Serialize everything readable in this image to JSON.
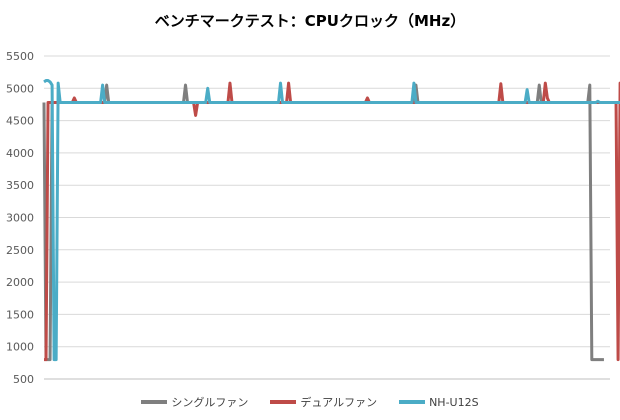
{
  "chart_data": {
    "type": "line",
    "title": "ベンチマークテスト：CPUクロック（MHz）",
    "xlabel": "",
    "ylabel": "",
    "ylim": [
      500,
      5500
    ],
    "yticks": [
      "500",
      "1000",
      "1500",
      "2000",
      "2500",
      "3000",
      "3500",
      "4000",
      "4500",
      "5000",
      "5500"
    ],
    "grid": true,
    "legend_position": "bottom",
    "n_points": 281,
    "series": [
      {
        "name": "シングルファン",
        "color": "#7f7f7f",
        "values": [
          4780,
          800,
          800,
          800,
          4780,
          4780,
          4780,
          4780,
          4780,
          4780,
          4780,
          4780,
          4780,
          4780,
          4780,
          4780,
          4780,
          4780,
          4780,
          4780,
          4780,
          4780,
          4780,
          4780,
          4780,
          4780,
          4780,
          4780,
          4780,
          4780,
          4780,
          5050,
          4780,
          4780,
          4780,
          4780,
          4780,
          4780,
          4780,
          4780,
          4780,
          4780,
          4780,
          4780,
          4780,
          4780,
          4780,
          4780,
          4780,
          4780,
          4780,
          4780,
          4780,
          4780,
          4780,
          4780,
          4780,
          4780,
          4780,
          4780,
          4780,
          4780,
          4780,
          4780,
          4780,
          4780,
          4780,
          4780,
          4780,
          4780,
          5050,
          4780,
          4780,
          4780,
          4780,
          4780,
          4780,
          4780,
          4780,
          4780,
          4780,
          4780,
          4780,
          4780,
          4780,
          4780,
          4780,
          4780,
          4780,
          4780,
          4780,
          4780,
          4780,
          4780,
          4780,
          4780,
          4780,
          4780,
          4780,
          4780,
          4780,
          4780,
          4780,
          4780,
          4780,
          4780,
          4780,
          4780,
          4780,
          4780,
          4780,
          4780,
          4780,
          4780,
          4780,
          4780,
          4780,
          4780,
          4780,
          4780,
          4780,
          4780,
          4780,
          4780,
          4780,
          4780,
          4780,
          4780,
          4780,
          4780,
          4780,
          4780,
          4780,
          4780,
          4780,
          4780,
          4780,
          4780,
          4780,
          4780,
          4780,
          4780,
          4780,
          4780,
          4780,
          4780,
          4780,
          4780,
          4780,
          4780,
          4780,
          4780,
          4780,
          4780,
          4780,
          4780,
          4780,
          4780,
          4780,
          4780,
          4780,
          4780,
          4780,
          4780,
          4780,
          4780,
          4780,
          4780,
          4780,
          4780,
          4780,
          4780,
          4780,
          4780,
          4780,
          4780,
          4780,
          4780,
          4780,
          4780,
          4780,
          4780,
          4780,
          4780,
          5050,
          4780,
          4780,
          4780,
          4780,
          4780,
          4780,
          4780,
          4780,
          4780,
          4780,
          4780,
          4780,
          4780,
          4780,
          4780,
          4780,
          4780,
          4780,
          4780,
          4780,
          4780,
          4780,
          4780,
          4780,
          4780,
          4780,
          4780,
          4780,
          4780,
          4780,
          4780,
          4780,
          4780,
          4780,
          4780,
          4780,
          4780,
          4780,
          4780,
          4780,
          4780,
          4780,
          4780,
          4780,
          4780,
          4780,
          4780,
          4780,
          4780,
          4780,
          4780,
          4780,
          4780,
          4780,
          4780,
          4780,
          4780,
          4780,
          4780,
          4780,
          5050,
          4780,
          4780,
          4780,
          4780,
          4780,
          4780,
          4780,
          4780,
          4780,
          4780,
          4780,
          4780,
          4780,
          4780,
          4780,
          4780,
          4780,
          4780,
          4780,
          4780,
          4780,
          4780,
          4780,
          4780,
          5050,
          800,
          800,
          800,
          800,
          800,
          800,
          800
        ]
      },
      {
        "name": "デュアルファン",
        "color": "#be4b48",
        "values": [
          800,
          800,
          4780,
          4780,
          4780,
          4780,
          4780,
          4780,
          4780,
          4780,
          4780,
          4780,
          4780,
          4780,
          4780,
          4850,
          4780,
          4780,
          4780,
          4780,
          4780,
          4780,
          4780,
          4780,
          4780,
          4780,
          4780,
          4780,
          4780,
          4780,
          4780,
          4780,
          4780,
          4780,
          4780,
          4780,
          4780,
          4780,
          4780,
          4780,
          4780,
          4780,
          4780,
          4780,
          4780,
          4780,
          4780,
          4780,
          4780,
          4780,
          4780,
          4780,
          4780,
          4780,
          4780,
          4780,
          4780,
          4780,
          4780,
          4780,
          4780,
          4780,
          4780,
          4780,
          4780,
          4780,
          4780,
          4780,
          4780,
          4780,
          4780,
          4780,
          4780,
          4780,
          4780,
          4580,
          4780,
          4780,
          4780,
          4780,
          4780,
          4780,
          4780,
          4780,
          4780,
          4780,
          4780,
          4780,
          4780,
          4780,
          4780,
          4780,
          5080,
          4780,
          4780,
          4780,
          4780,
          4780,
          4780,
          4780,
          4780,
          4780,
          4780,
          4780,
          4780,
          4780,
          4780,
          4780,
          4780,
          4780,
          4780,
          4780,
          4780,
          4780,
          4780,
          4780,
          4780,
          4780,
          4780,
          4780,
          4780,
          5080,
          4780,
          4780,
          4780,
          4780,
          4780,
          4780,
          4780,
          4780,
          4780,
          4780,
          4780,
          4780,
          4780,
          4780,
          4780,
          4780,
          4780,
          4780,
          4780,
          4780,
          4780,
          4780,
          4780,
          4780,
          4780,
          4780,
          4780,
          4780,
          4780,
          4780,
          4780,
          4780,
          4780,
          4780,
          4780,
          4780,
          4780,
          4780,
          4850,
          4780,
          4780,
          4780,
          4780,
          4780,
          4780,
          4780,
          4780,
          4780,
          4780,
          4780,
          4780,
          4780,
          4780,
          4780,
          4780,
          4780,
          4780,
          4780,
          4780,
          4780,
          4780,
          4780,
          4780,
          4780,
          4780,
          4780,
          4780,
          4780,
          4780,
          4780,
          4780,
          4780,
          4780,
          4780,
          4780,
          4780,
          4780,
          4780,
          4780,
          4780,
          4780,
          4780,
          4780,
          4780,
          4780,
          4780,
          4780,
          4780,
          4780,
          4780,
          4780,
          4780,
          4780,
          4780,
          4780,
          4780,
          4780,
          4780,
          4780,
          4780,
          4780,
          4780,
          4780,
          4780,
          5070,
          4780,
          4780,
          4780,
          4780,
          4780,
          4780,
          4780,
          4780,
          4780,
          4780,
          4780,
          4780,
          4780,
          4780,
          4780,
          4780,
          4780,
          4780,
          4780,
          4780,
          4780,
          5080,
          4850,
          4780,
          4780,
          4780,
          4780,
          4780,
          4780,
          4780,
          4780,
          4780,
          4780,
          4780,
          4780,
          4780,
          4780,
          4780,
          4780,
          4780,
          4780,
          4780,
          4780,
          4780,
          4780,
          4780,
          4780,
          4780,
          4780,
          4780,
          4780,
          4780,
          4780,
          4780,
          4780,
          4780,
          4780,
          800,
          5080,
          2650
        ]
      },
      {
        "name": "NH-U12S",
        "color": "#4bacc6",
        "values": [
          5100,
          5120,
          5120,
          5100,
          5050,
          800,
          800,
          5080,
          4780,
          4780,
          4780,
          4780,
          4780,
          4780,
          4780,
          4780,
          4780,
          4780,
          4780,
          4780,
          4780,
          4780,
          4780,
          4780,
          4780,
          4780,
          4780,
          4780,
          4780,
          5050,
          4780,
          4780,
          4780,
          4780,
          4780,
          4780,
          4780,
          4780,
          4780,
          4780,
          4780,
          4780,
          4780,
          4780,
          4780,
          4780,
          4780,
          4780,
          4780,
          4780,
          4780,
          4780,
          4780,
          4780,
          4780,
          4780,
          4780,
          4780,
          4780,
          4780,
          4780,
          4780,
          4780,
          4780,
          4780,
          4780,
          4780,
          4780,
          4780,
          4780,
          4780,
          4780,
          4780,
          4780,
          4780,
          4780,
          4780,
          4780,
          4780,
          4780,
          4780,
          5000,
          4780,
          4780,
          4780,
          4780,
          4780,
          4780,
          4780,
          4780,
          4780,
          4780,
          4780,
          4780,
          4780,
          4780,
          4780,
          4780,
          4780,
          4780,
          4780,
          4780,
          4780,
          4780,
          4780,
          4780,
          4780,
          4780,
          4780,
          4780,
          4780,
          4780,
          4780,
          4780,
          4780,
          4780,
          4780,
          5080,
          4780,
          4780,
          4780,
          4780,
          4780,
          4780,
          4780,
          4780,
          4780,
          4780,
          4780,
          4780,
          4780,
          4780,
          4780,
          4780,
          4780,
          4780,
          4780,
          4780,
          4780,
          4780,
          4780,
          4780,
          4780,
          4780,
          4780,
          4780,
          4780,
          4780,
          4780,
          4780,
          4780,
          4780,
          4780,
          4780,
          4780,
          4780,
          4780,
          4780,
          4780,
          4780,
          4780,
          4780,
          4780,
          4780,
          4780,
          4780,
          4780,
          4780,
          4780,
          4780,
          4780,
          4780,
          4780,
          4780,
          4780,
          4780,
          4780,
          4780,
          4780,
          4780,
          4780,
          4780,
          4780,
          5080,
          4780,
          4780,
          4780,
          4780,
          4780,
          4780,
          4780,
          4780,
          4780,
          4780,
          4780,
          4780,
          4780,
          4780,
          4780,
          4780,
          4780,
          4780,
          4780,
          4780,
          4780,
          4780,
          4780,
          4780,
          4780,
          4780,
          4780,
          4780,
          4780,
          4780,
          4780,
          4780,
          4780,
          4780,
          4780,
          4780,
          4780,
          4780,
          4780,
          4780,
          4780,
          4780,
          4780,
          4780,
          4780,
          4780,
          4780,
          4780,
          4780,
          4780,
          4780,
          4780,
          4780,
          4780,
          4780,
          4980,
          4780,
          4780,
          4780,
          4780,
          4780,
          4780,
          4780,
          4780,
          4780,
          4780,
          4780,
          4780,
          4780,
          4780,
          4780,
          4780,
          4780,
          4780,
          4780,
          4780,
          4780,
          4780,
          4780,
          4780,
          4780,
          4780,
          4780,
          4780,
          4780,
          4780,
          4780,
          4780,
          4780,
          4780,
          4800,
          4780,
          4780,
          4780,
          4780,
          4780,
          4780,
          4780,
          4780,
          4780,
          4780,
          4780,
          4780,
          4780,
          4780,
          4780,
          4780,
          4780,
          4780,
          4780,
          4780,
          4780,
          4780,
          4780,
          4780
        ]
      }
    ]
  }
}
